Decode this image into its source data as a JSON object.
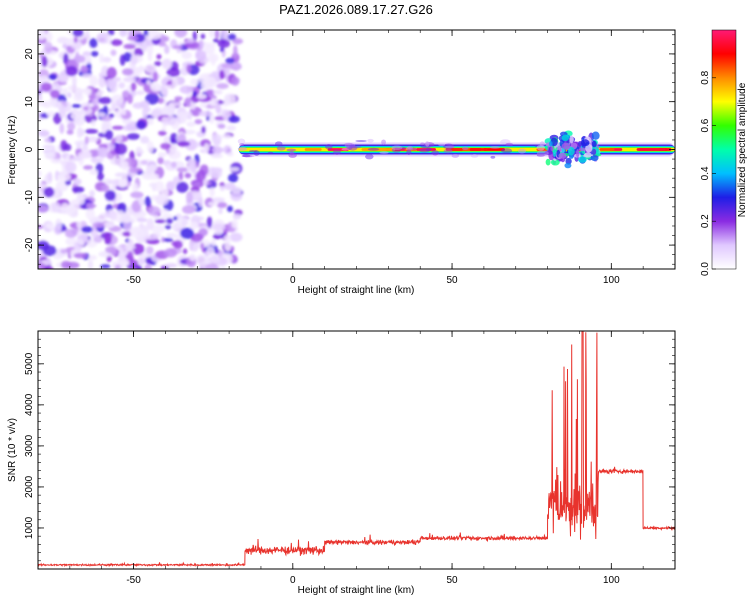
{
  "title": "PAZ1.2026.089.17.27.G26",
  "chart_data": [
    {
      "type": "heatmap",
      "name": "spectrogram",
      "xlabel": "Height of straight line (km)",
      "ylabel": "Frequency (Hz)",
      "xlim": [
        -80,
        120
      ],
      "ylim": [
        -25,
        25
      ],
      "xticks": [
        -50,
        0,
        50,
        100
      ],
      "yticks": [
        -20,
        -10,
        0,
        10,
        20
      ],
      "colorbar": {
        "label": "Normalized spectral amplitude",
        "range": [
          0.0,
          1.0
        ],
        "ticks": [
          0.0,
          0.2,
          0.4,
          0.6,
          0.8
        ],
        "colors": [
          "#ffffff",
          "#e0c8ff",
          "#8a2be2",
          "#1e1ee6",
          "#00bfff",
          "#00ffaa",
          "#33ff00",
          "#ffff00",
          "#ff8c00",
          "#ff0000",
          "#ff1a75"
        ]
      },
      "regions": [
        {
          "description": "noise",
          "x_range": [
            -80,
            -17
          ],
          "freq_range": [
            -25,
            25
          ],
          "amplitude_range": [
            0.05,
            0.35
          ]
        },
        {
          "description": "signal",
          "x_range": [
            -17,
            120
          ],
          "freq_center": 0,
          "amplitude_peak": 0.95
        }
      ]
    },
    {
      "type": "line",
      "name": "snr",
      "xlabel": "Height of straight line (km)",
      "ylabel": "SNR (10 * v/v)",
      "xlim": [
        -80,
        120
      ],
      "ylim": [
        0,
        5800
      ],
      "xticks": [
        -50,
        0,
        50,
        100
      ],
      "yticks": [
        1000,
        2000,
        3000,
        4000,
        5000
      ],
      "color": "#e8332d",
      "series": [
        {
          "name": "SNR",
          "segments": [
            {
              "x_range": [
                -80,
                -15
              ],
              "level": 100,
              "noise": 30
            },
            {
              "x_range": [
                -15,
                10
              ],
              "level": 450,
              "noise": 150
            },
            {
              "x_range": [
                10,
                40
              ],
              "level": 650,
              "noise": 80
            },
            {
              "x_range": [
                40,
                80
              ],
              "level": 750,
              "noise": 70
            },
            {
              "x_range": [
                80,
                96
              ],
              "level": 1500,
              "noise": 1200,
              "peak": 5900
            },
            {
              "x_range": [
                96,
                110
              ],
              "level": 2380,
              "noise": 70
            },
            {
              "x_range": [
                110,
                120
              ],
              "level": 1000,
              "noise": 40
            }
          ]
        }
      ]
    }
  ]
}
